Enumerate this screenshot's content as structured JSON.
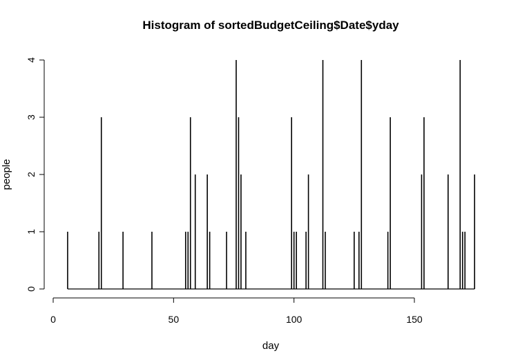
{
  "chart_data": {
    "type": "bar",
    "title": "Histogram of sortedBudgetCeiling$Date$yday",
    "xlabel": "day",
    "ylabel": "people",
    "xlim": [
      0,
      175
    ],
    "ylim": [
      0,
      4
    ],
    "x_ticks": [
      "0",
      "50",
      "100",
      "150"
    ],
    "y_ticks": [
      "0",
      "1",
      "2",
      "3",
      "4"
    ],
    "grid": false,
    "bar_color": "#000000",
    "points": [
      {
        "x": 6,
        "y": 1
      },
      {
        "x": 19,
        "y": 1
      },
      {
        "x": 20,
        "y": 3
      },
      {
        "x": 29,
        "y": 1
      },
      {
        "x": 41,
        "y": 1
      },
      {
        "x": 55,
        "y": 1
      },
      {
        "x": 56,
        "y": 1
      },
      {
        "x": 57,
        "y": 3
      },
      {
        "x": 59,
        "y": 2
      },
      {
        "x": 64,
        "y": 2
      },
      {
        "x": 65,
        "y": 1
      },
      {
        "x": 72,
        "y": 1
      },
      {
        "x": 76,
        "y": 4
      },
      {
        "x": 77,
        "y": 3
      },
      {
        "x": 78,
        "y": 2
      },
      {
        "x": 80,
        "y": 1
      },
      {
        "x": 99,
        "y": 3
      },
      {
        "x": 100,
        "y": 1
      },
      {
        "x": 101,
        "y": 1
      },
      {
        "x": 105,
        "y": 1
      },
      {
        "x": 106,
        "y": 2
      },
      {
        "x": 112,
        "y": 4
      },
      {
        "x": 113,
        "y": 1
      },
      {
        "x": 125,
        "y": 1
      },
      {
        "x": 127,
        "y": 1
      },
      {
        "x": 128,
        "y": 4
      },
      {
        "x": 139,
        "y": 1
      },
      {
        "x": 140,
        "y": 3
      },
      {
        "x": 153,
        "y": 2
      },
      {
        "x": 154,
        "y": 3
      },
      {
        "x": 164,
        "y": 2
      },
      {
        "x": 169,
        "y": 4
      },
      {
        "x": 170,
        "y": 1
      },
      {
        "x": 171,
        "y": 1
      },
      {
        "x": 175,
        "y": 2
      }
    ]
  }
}
